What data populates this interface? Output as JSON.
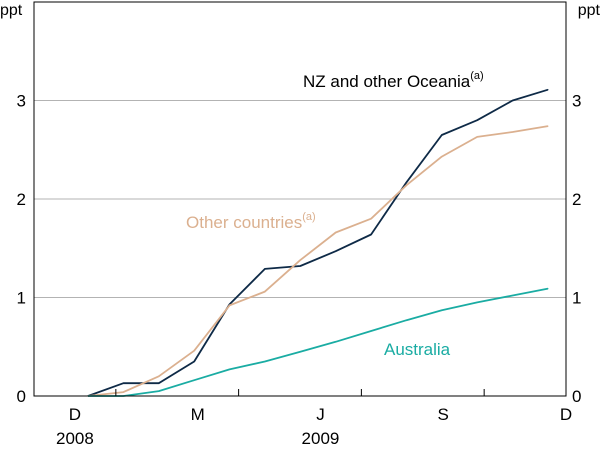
{
  "chart_data": {
    "type": "line",
    "y_unit_left": "ppt",
    "y_unit_right": "ppt",
    "ylim": [
      0,
      4
    ],
    "yticks": [
      0,
      1,
      2,
      3
    ],
    "grid": true,
    "x_domain": [
      "2008-11",
      "2009-12"
    ],
    "x_ticks": [
      {
        "label": "D",
        "x": "2008-12"
      },
      {
        "label": "M",
        "x": "2009-03"
      },
      {
        "label": "J",
        "x": "2009-06"
      },
      {
        "label": "S",
        "x": "2009-09"
      },
      {
        "label": "D",
        "x": "2009-12"
      }
    ],
    "year_labels": [
      {
        "label": "2008",
        "x": "2008-12"
      },
      {
        "label": "2009",
        "x": "2009-06"
      }
    ],
    "x": [
      "2008-12",
      "2009-01",
      "2009-02",
      "2009-03",
      "2009-04",
      "2009-05",
      "2009-06",
      "2009-07",
      "2009-08",
      "2009-09",
      "2009-10",
      "2009-11",
      "2009-12",
      "2010-01"
    ],
    "series": [
      {
        "name": "NZ and other Oceania",
        "footnote": "(a)",
        "color": "#0e2a47",
        "values": [
          0.0,
          0.13,
          0.13,
          0.35,
          0.93,
          1.29,
          1.32,
          1.47,
          1.64,
          2.17,
          2.65,
          2.8,
          3.0,
          3.11
        ]
      },
      {
        "name": "Other countries",
        "footnote": "(a)",
        "color": "#dbb08f",
        "values": [
          0.0,
          0.04,
          0.2,
          0.46,
          0.92,
          1.06,
          1.38,
          1.66,
          1.8,
          2.14,
          2.43,
          2.63,
          2.68,
          2.74
        ]
      },
      {
        "name": "Australia",
        "footnote": "",
        "color": "#1aaca3",
        "values": [
          0.0,
          0.0,
          0.05,
          0.16,
          0.27,
          0.35,
          0.45,
          0.55,
          0.66,
          0.77,
          0.87,
          0.95,
          1.02,
          1.09
        ]
      }
    ]
  }
}
